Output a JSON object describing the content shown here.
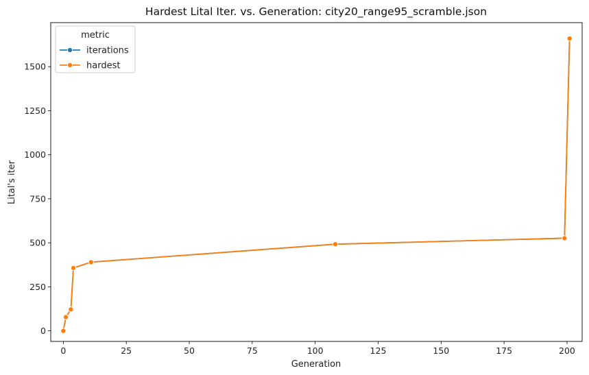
{
  "chart_data": {
    "type": "line",
    "title": "Hardest Lital Iter. vs. Generation: city20_range95_scramble.json",
    "xlabel": "Generation",
    "ylabel": "Lital's iter",
    "xlim": [
      -5,
      206
    ],
    "ylim": [
      -60,
      1750
    ],
    "xticks": [
      0,
      25,
      50,
      75,
      100,
      125,
      150,
      175,
      200
    ],
    "yticks": [
      0,
      250,
      500,
      750,
      1000,
      1250,
      1500
    ],
    "grid": false,
    "legend": {
      "title": "metric",
      "placement": "top-left",
      "entries": [
        "iterations",
        "hardest"
      ]
    },
    "series": [
      {
        "name": "iterations",
        "color": "#1f77b4",
        "marker": "circle",
        "x": [
          0,
          1,
          3,
          4,
          11,
          108,
          199,
          201
        ],
        "y": [
          0,
          78,
          122,
          357,
          390,
          492,
          526,
          1660
        ]
      },
      {
        "name": "hardest",
        "color": "#ff7f0e",
        "marker": "circle",
        "x": [
          0,
          1,
          3,
          4,
          11,
          108,
          199,
          201
        ],
        "y": [
          0,
          78,
          122,
          357,
          390,
          492,
          526,
          1660
        ]
      }
    ]
  }
}
